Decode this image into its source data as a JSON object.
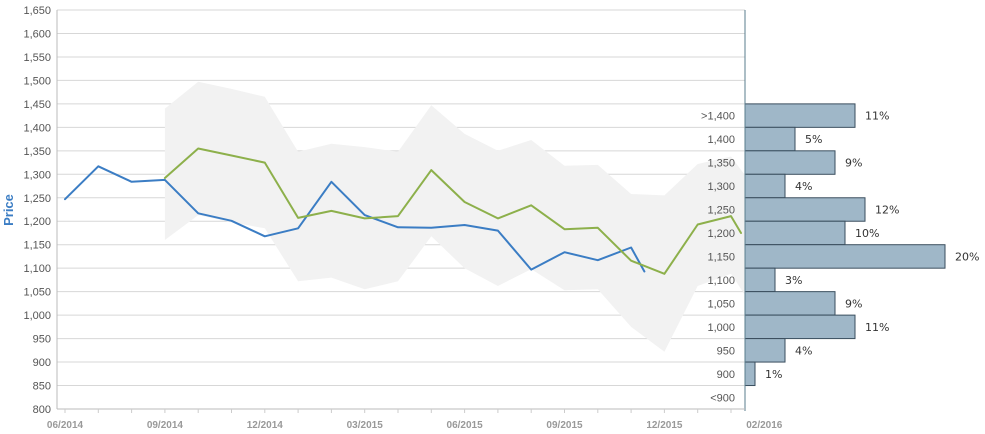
{
  "chart_data": {
    "type": "line",
    "ylabel": "Price",
    "ylim": [
      800,
      1650
    ],
    "y_ticks": [
      "1,650",
      "1,600",
      "1,550",
      "1,500",
      "1,450",
      "1,400",
      "1,350",
      "1,300",
      "1,250",
      "1,200",
      "1,150",
      "1,100",
      "1,050",
      "1,000",
      "950",
      "900",
      "850",
      "800"
    ],
    "x_tick_labels": [
      "06/2014",
      "09/2014",
      "12/2014",
      "03/2015",
      "06/2015",
      "09/2015",
      "12/2015",
      "02/2016"
    ],
    "x_range": [
      0,
      20.5
    ],
    "grid": true,
    "colors": {
      "blue": "#3b7dc4",
      "green": "#8db04b",
      "band": "#f2f2f2",
      "hist_fill": "#9fb7c8",
      "hist_edge": "#3a4e5e"
    },
    "series": [
      {
        "x": [
          0,
          1,
          2,
          3,
          4,
          5,
          6,
          7,
          8,
          9,
          10,
          11,
          12,
          13,
          14,
          15,
          16,
          17,
          17.4
        ],
        "values": [
          1247,
          1317,
          1284,
          1288,
          1217,
          1201,
          1168,
          1185,
          1284,
          1213,
          1187,
          1186,
          1192,
          1180,
          1097,
          1134,
          1117,
          1144,
          1093
        ]
      },
      {
        "x": [
          3,
          4,
          5,
          6,
          7,
          8,
          9,
          10,
          11,
          12,
          13,
          14,
          15,
          16,
          17,
          18,
          19,
          20,
          20.3
        ],
        "values": [
          1292,
          1355,
          1340,
          1325,
          1207,
          1222,
          1206,
          1211,
          1309,
          1241,
          1206,
          1234,
          1183,
          1186,
          1116,
          1088,
          1193,
          1211,
          1175
        ]
      },
      {
        "type": "area",
        "x": [
          3,
          4,
          5,
          6,
          7,
          8,
          9,
          10,
          11,
          12,
          13,
          14,
          15,
          16,
          17,
          18,
          19,
          20,
          20.4
        ],
        "upper": [
          1440,
          1497,
          1482,
          1465,
          1348,
          1365,
          1358,
          1348,
          1447,
          1386,
          1350,
          1373,
          1318,
          1320,
          1258,
          1255,
          1322,
          1338,
          1300
        ],
        "lower": [
          1160,
          1213,
          1198,
          1185,
          1072,
          1080,
          1055,
          1072,
          1168,
          1100,
          1062,
          1098,
          1053,
          1055,
          975,
          922,
          1062,
          1088,
          1045
        ]
      }
    ],
    "histogram": {
      "categories": [
        ">1,400",
        "1,400",
        "1,350",
        "1,300",
        "1,250",
        "1,200",
        "1,150",
        "1,100",
        "1,050",
        "1,000",
        "950",
        "900",
        "<900"
      ],
      "values": [
        11,
        5,
        9,
        4,
        12,
        10,
        20,
        3,
        9,
        11,
        4,
        1,
        null
      ],
      "labels": [
        "11%",
        "5%",
        "9%",
        "4%",
        "12%",
        "10%",
        "20%",
        "3%",
        "9%",
        "11%",
        "4%",
        "1%",
        ""
      ]
    }
  }
}
